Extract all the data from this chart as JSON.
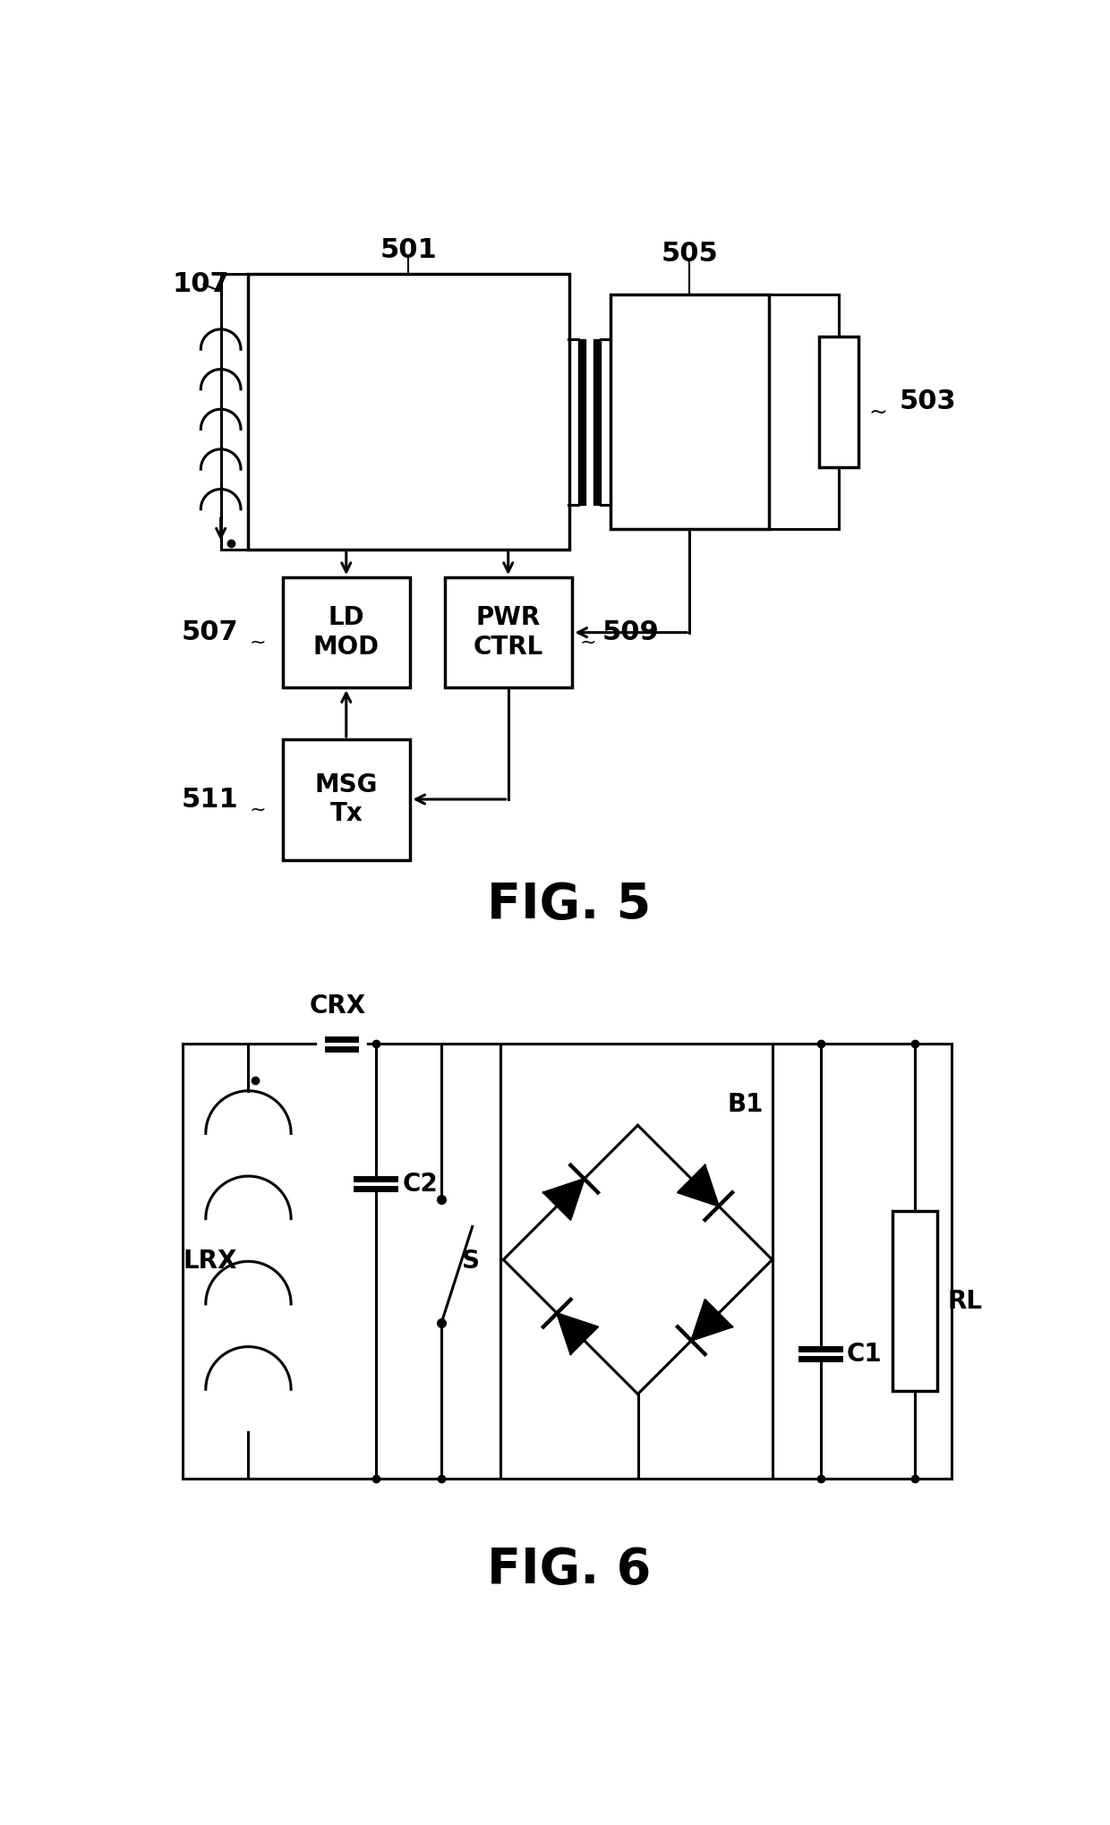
{
  "bg": "#ffffff",
  "lc": "#000000",
  "lw": 2.2,
  "fig5": {
    "title": "FIG. 5",
    "label_501": "501",
    "label_505": "505",
    "label_503": "503",
    "label_107": "107",
    "label_507": "507",
    "label_509": "509",
    "label_511": "511",
    "label_ldmod": "LD\nMOD",
    "label_pwrctrl": "PWR\nCTRL",
    "label_msgtx": "MSG\nTx"
  },
  "fig6": {
    "title": "FIG. 6",
    "label_crx": "CRX",
    "label_c2": "C2",
    "label_s": "S",
    "label_lrx": "LRX",
    "label_b1": "B1",
    "label_c1": "C1",
    "label_rl": "RL"
  }
}
